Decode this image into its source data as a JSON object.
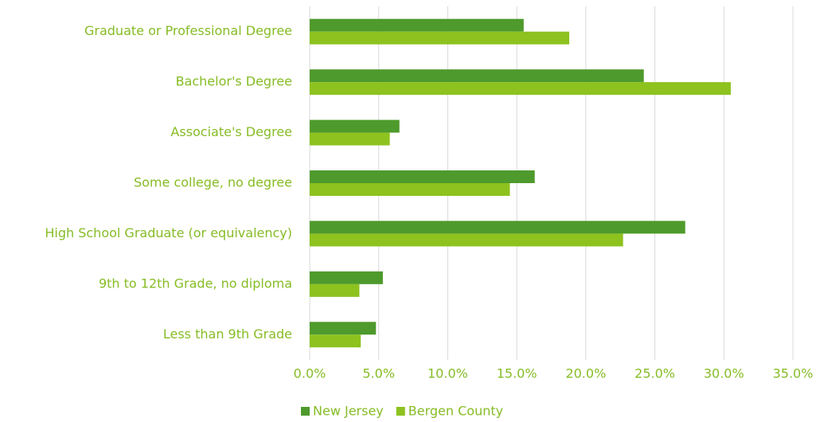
{
  "chart_data": {
    "type": "bar",
    "orientation": "horizontal",
    "categories": [
      "Graduate or Professional Degree",
      "Bachelor's Degree",
      "Associate's Degree",
      "Some college, no degree",
      "High School Graduate (or equivalency)",
      "9th to 12th Grade, no diploma",
      "Less than 9th Grade"
    ],
    "series": [
      {
        "name": "New Jersey",
        "color": "#4e9a2c",
        "values": [
          15.5,
          24.2,
          6.5,
          16.3,
          27.2,
          5.3,
          4.8
        ]
      },
      {
        "name": "Bergen County",
        "color": "#8dc21f",
        "values": [
          18.8,
          30.5,
          5.8,
          14.5,
          22.7,
          3.6,
          3.7
        ]
      }
    ],
    "xlim": [
      0,
      35
    ],
    "xticks": [
      {
        "value": 0,
        "label": "0.0%"
      },
      {
        "value": 5,
        "label": "5.0%"
      },
      {
        "value": 10,
        "label": "10.0%"
      },
      {
        "value": 15,
        "label": "15.0%"
      },
      {
        "value": 20,
        "label": "20.0%"
      },
      {
        "value": 25,
        "label": "25.0%"
      },
      {
        "value": 30,
        "label": "30.0%"
      },
      {
        "value": 35,
        "label": "35.0%"
      }
    ],
    "grid": true,
    "legend": "bottom"
  }
}
